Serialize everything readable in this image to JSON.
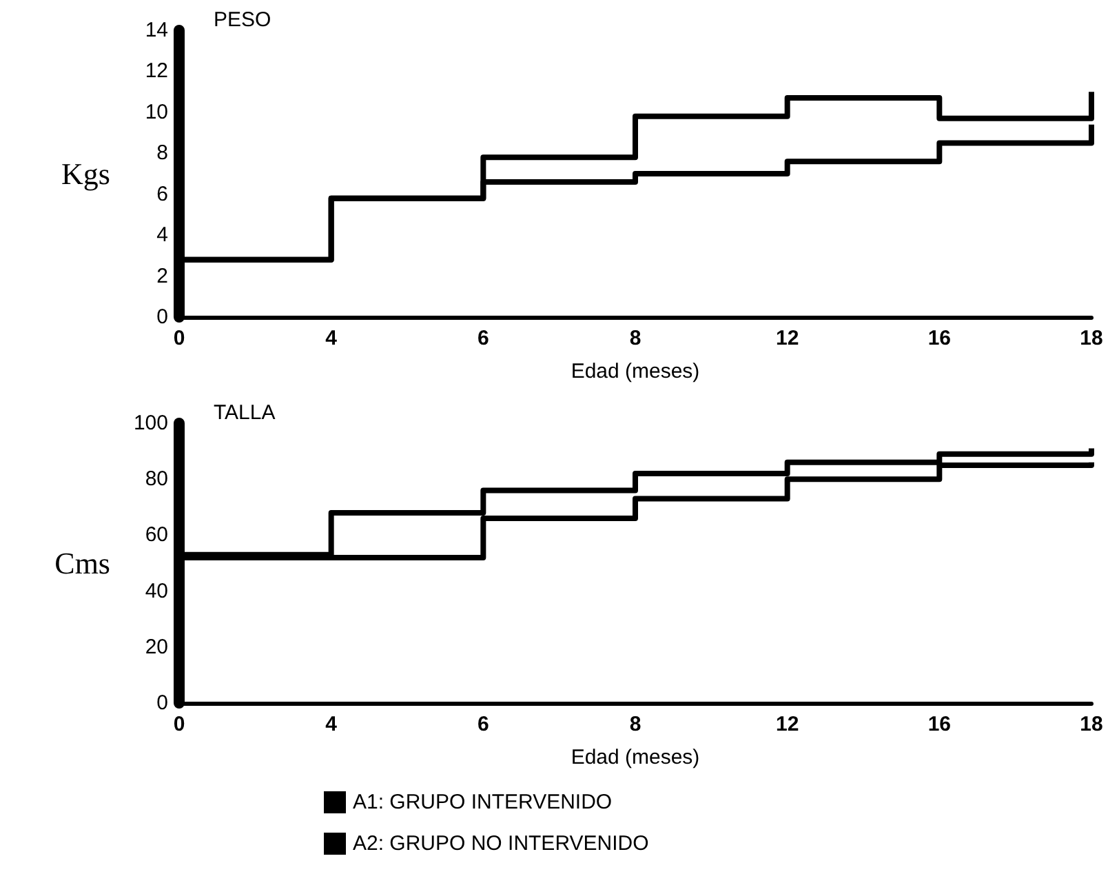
{
  "chart_data": [
    {
      "type": "step",
      "title": "PESO",
      "xlabel": "Edad (meses)",
      "ylabel": "Kgs",
      "categories": [
        "0",
        "4",
        "6",
        "8",
        "12",
        "16",
        "18"
      ],
      "series": [
        {
          "color": "#000000",
          "values": [
            2.8,
            5.8,
            7.8,
            9.8,
            10.7,
            9.7,
            11.0
          ]
        },
        {
          "color": "#000000",
          "values": [
            2.8,
            5.8,
            6.6,
            7.0,
            7.6,
            8.5,
            9.4
          ]
        }
      ],
      "ylim": [
        0,
        14
      ],
      "yticks": [
        0,
        2,
        4,
        6,
        8,
        10,
        12,
        14
      ],
      "grid": false,
      "legend": false,
      "marker": "none",
      "line_style": "solid"
    },
    {
      "type": "step",
      "title": "TALLA",
      "xlabel": "Edad (meses)",
      "ylabel": "Cms",
      "categories": [
        "0",
        "4",
        "6",
        "8",
        "12",
        "16",
        "18"
      ],
      "series": [
        {
          "name": "A1: GRUPO INTERVENIDO",
          "color": "#000000",
          "values": [
            53,
            68,
            76,
            82,
            86,
            89,
            91
          ]
        },
        {
          "name": "A2: GRUPO NO INTERVENIDO",
          "color": "#000000",
          "values": [
            52,
            52,
            66,
            73,
            80,
            85,
            86
          ]
        }
      ],
      "ylim": [
        0,
        100
      ],
      "yticks": [
        0,
        20,
        40,
        60,
        80,
        100
      ],
      "grid": false,
      "legend": "bottom",
      "marker": "none",
      "line_style": "solid"
    }
  ]
}
